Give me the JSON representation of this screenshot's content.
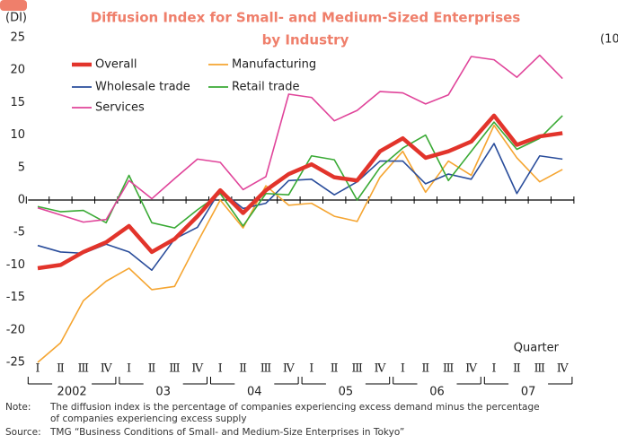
{
  "chart_data": {
    "type": "line",
    "title": [
      "Diffusion Index for Small- and Medium-Sized Enterprises",
      "by Industry"
    ],
    "y_label": "(DI)",
    "side_label": "(10",
    "x_annotation": "Quarter",
    "categories": [
      "Ⅰ",
      "Ⅱ",
      "Ⅲ",
      "Ⅳ",
      "Ⅰ",
      "Ⅱ",
      "Ⅲ",
      "Ⅳ",
      "Ⅰ",
      "Ⅱ",
      "Ⅲ",
      "Ⅳ",
      "Ⅰ",
      "Ⅱ",
      "Ⅲ",
      "Ⅳ",
      "Ⅰ",
      "Ⅱ",
      "Ⅲ",
      "Ⅳ",
      "Ⅰ",
      "Ⅱ",
      "Ⅲ",
      "Ⅳ"
    ],
    "year_labels": [
      "2002",
      "03",
      "04",
      "05",
      "06",
      "07"
    ],
    "ylim": [
      -25,
      25
    ],
    "yticks": [
      -25,
      -20,
      -15,
      -10,
      -5,
      0,
      5,
      10,
      15,
      20,
      25
    ],
    "series": [
      {
        "name": "Overall",
        "color": "#e2342b",
        "values": [
          -10.5,
          -10,
          -8,
          -6.5,
          -4,
          -8,
          -6,
          -2.5,
          1.5,
          -2,
          1.5,
          4,
          5.5,
          3.5,
          3,
          7.5,
          9.5,
          6.5,
          7.5,
          9,
          13,
          8.5,
          9.8,
          10.3
        ]
      },
      {
        "name": "Manufacturing",
        "color": "#f5a531",
        "values": [
          -25,
          -22,
          -15.5,
          -12.5,
          -10.5,
          -13.8,
          -13.3,
          -6.5,
          0,
          -4.3,
          2.2,
          -0.8,
          -0.5,
          -2.5,
          -3.3,
          3.5,
          7.5,
          1.2,
          6,
          3.8,
          11.5,
          6.5,
          2.8,
          4.7
        ]
      },
      {
        "name": "Wholesale trade",
        "color": "#2a4d9b",
        "values": [
          -7,
          -8,
          -8.2,
          -6.8,
          -8,
          -10.8,
          -6,
          -4.2,
          1.5,
          -1.3,
          -0.5,
          3,
          3.2,
          0.8,
          2.8,
          6,
          6,
          2.5,
          4,
          3.2,
          8.7,
          1,
          6.8,
          6.3
        ]
      },
      {
        "name": "Retail trade",
        "color": "#3aaa35",
        "values": [
          -1,
          -1.8,
          -1.6,
          -3.5,
          3.8,
          -3.5,
          -4.3,
          -1.5,
          1,
          -4,
          1,
          0.8,
          6.8,
          6.2,
          0,
          5,
          8,
          10,
          3,
          7.5,
          12,
          7.8,
          9.5,
          13
        ]
      },
      {
        "name": "Services",
        "color": "#e0449a",
        "values": [
          -1.2,
          -2.3,
          -3.4,
          -3,
          3,
          0.2,
          3.3,
          6.3,
          5.8,
          1.6,
          3.6,
          16.3,
          15.8,
          12.2,
          13.8,
          16.7,
          16.5,
          14.8,
          16.2,
          22.1,
          21.6,
          18.9,
          22.3,
          18.7
        ]
      }
    ],
    "notes": {
      "label": "Note:",
      "lines": [
        "The diffusion index is the percentage of companies experiencing excess demand minus the percentage",
        "of companies experiencing excess supply"
      ]
    },
    "source": {
      "label": "Source:",
      "text": "TMG “Business Conditions of Small- and Medium-Size Enterprises in Tokyo”"
    }
  }
}
